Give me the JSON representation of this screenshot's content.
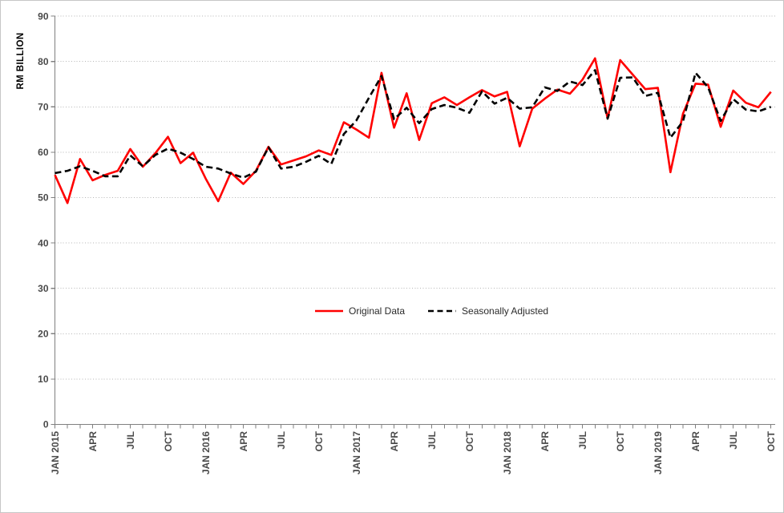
{
  "chart_data": {
    "type": "line",
    "title": "",
    "ylabel": "RM BILLION",
    "ylim": [
      0,
      90
    ],
    "ytick_step": 10,
    "n_points": 58,
    "x_label_interval": 3,
    "x_tick_labels": [
      "JAN 2015",
      "APR",
      "JUL",
      "OCT",
      "JAN 2016",
      "APR",
      "JUL",
      "OCT",
      "JAN 2017",
      "APR",
      "JUL",
      "OCT",
      "JAN 2018",
      "APR",
      "JUL",
      "OCT",
      "JAN 2019",
      "APR",
      "JUL",
      "OCT"
    ],
    "grid": "horizontal-dotted",
    "legend_position": "center-middle",
    "series": [
      {
        "name": "Original Data",
        "color": "#ff0000",
        "style": "solid",
        "values": [
          55.0,
          48.8,
          58.5,
          53.8,
          55.0,
          55.9,
          60.7,
          56.8,
          59.8,
          63.4,
          57.6,
          59.9,
          54.2,
          49.2,
          55.5,
          53.0,
          55.9,
          61.2,
          57.3,
          58.2,
          59.1,
          60.4,
          59.4,
          66.6,
          65.0,
          63.2,
          77.5,
          65.4,
          73.0,
          62.7,
          70.8,
          72.1,
          70.4,
          72.1,
          73.7,
          72.3,
          73.3,
          61.3,
          69.6,
          71.8,
          73.8,
          72.9,
          76.0,
          80.7,
          67.4,
          80.3,
          77.1,
          73.9,
          74.2,
          55.6,
          68.5,
          75.1,
          74.9,
          65.6,
          73.6,
          70.9,
          69.9,
          73.3
        ]
      },
      {
        "name": "Seasonally Adjusted",
        "color": "#000000",
        "style": "dashed",
        "values": [
          55.4,
          55.9,
          56.9,
          55.9,
          54.7,
          54.7,
          59.3,
          56.9,
          59.4,
          60.8,
          59.9,
          58.5,
          56.8,
          56.4,
          55.3,
          54.4,
          55.7,
          61.1,
          56.4,
          56.8,
          57.9,
          59.2,
          57.4,
          64.0,
          67.0,
          72.0,
          76.8,
          67.3,
          69.8,
          66.4,
          69.5,
          70.4,
          69.8,
          68.7,
          73.4,
          70.7,
          72.0,
          69.6,
          69.9,
          74.3,
          73.5,
          75.6,
          74.8,
          78.1,
          67.4,
          76.4,
          76.5,
          72.4,
          73.1,
          63.2,
          66.8,
          77.5,
          74.3,
          66.9,
          71.7,
          69.4,
          69.0,
          70.0
        ]
      }
    ],
    "colors": {
      "gridline": "#b5b5b5",
      "axis": "#808080",
      "tick_label": "#4a4a4a"
    }
  }
}
